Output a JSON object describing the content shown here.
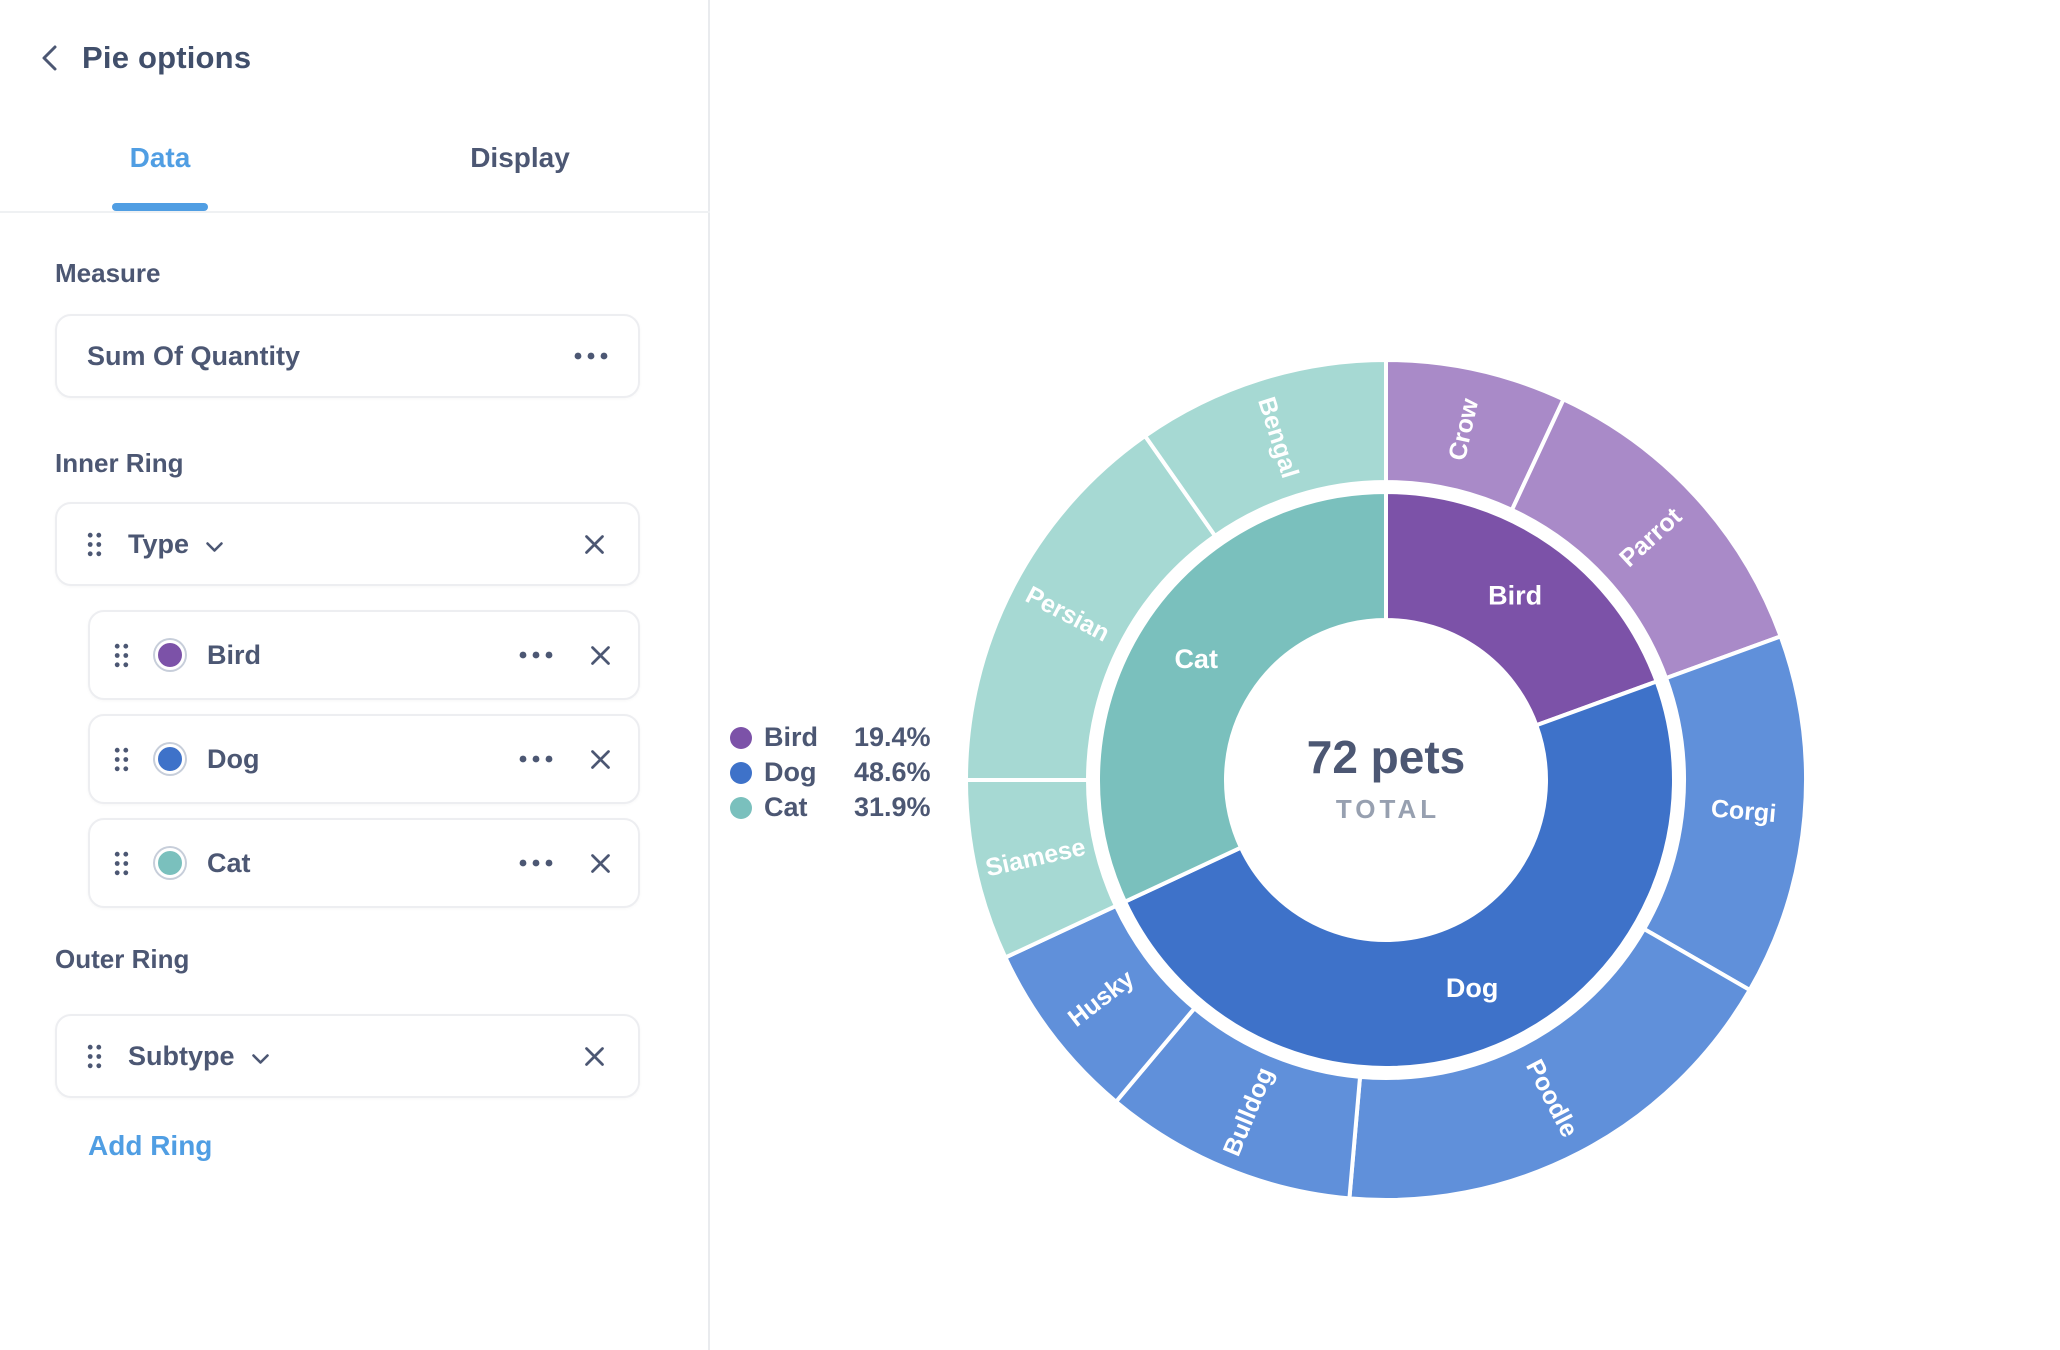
{
  "header": {
    "title": "Pie options"
  },
  "tabs": {
    "items": [
      {
        "label": "Data",
        "active": true
      },
      {
        "label": "Display",
        "active": false
      }
    ]
  },
  "measure": {
    "section_label": "Measure",
    "value": "Sum Of Quantity"
  },
  "inner_ring": {
    "section_label": "Inner Ring",
    "field": "Type",
    "items": [
      {
        "label": "Bird",
        "color": "#7C52A8"
      },
      {
        "label": "Dog",
        "color": "#3E72C9"
      },
      {
        "label": "Cat",
        "color": "#7AC0BD"
      }
    ]
  },
  "outer_ring": {
    "section_label": "Outer Ring",
    "field": "Subtype"
  },
  "actions": {
    "add_ring_label": "Add Ring"
  },
  "legend": {
    "items": [
      {
        "label": "Bird",
        "percent": "19.4%",
        "color": "#7C52A8"
      },
      {
        "label": "Dog",
        "percent": "48.6%",
        "color": "#3E72C9"
      },
      {
        "label": "Cat",
        "percent": "31.9%",
        "color": "#7AC0BD"
      }
    ]
  },
  "chart_data": {
    "type": "pie",
    "subtype": "sunburst-two-ring-donut",
    "title": "",
    "center_label": "72 pets",
    "center_sublabel": "TOTAL",
    "total_value": 72,
    "start_angle_deg": 0,
    "clockwise": true,
    "rings": [
      "Type",
      "Subtype"
    ],
    "legend_position": "left",
    "series": [
      {
        "name": "Bird",
        "value": 14,
        "percent": "19.4%",
        "color": "#7C52A8",
        "children_color": "#A98AC8",
        "children": [
          {
            "name": "Crow",
            "value": 5
          },
          {
            "name": "Parrot",
            "value": 9
          }
        ]
      },
      {
        "name": "Dog",
        "value": 35,
        "percent": "48.6%",
        "color": "#3E72C9",
        "children_color": "#6090DA",
        "children": [
          {
            "name": "Corgi",
            "value": 10
          },
          {
            "name": "Poodle",
            "value": 13
          },
          {
            "name": "Bulldog",
            "value": 7
          },
          {
            "name": "Husky",
            "value": 5
          }
        ]
      },
      {
        "name": "Cat",
        "value": 23,
        "percent": "31.9%",
        "color": "#7AC0BD",
        "children_color": "#A6D9D3",
        "children": [
          {
            "name": "Siamese",
            "value": 5
          },
          {
            "name": "Persian",
            "value": 11
          },
          {
            "name": "Bengal",
            "value": 7
          }
        ]
      }
    ]
  },
  "colors": {
    "accent": "#509EE3",
    "text": "#4C5773",
    "muted": "#97A0B0",
    "border": "#EDEEF1"
  }
}
